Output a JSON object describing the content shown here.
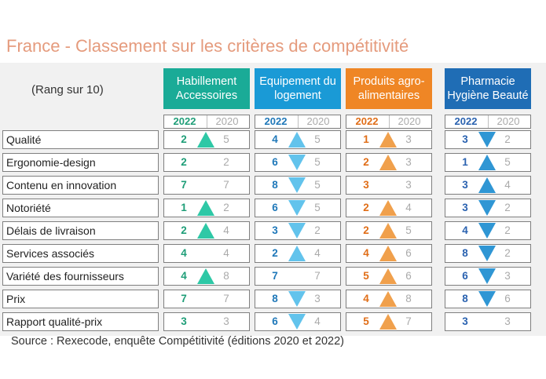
{
  "title": "France - Classement sur les critères de compétitivité",
  "subtitle": "(Rang sur 10)",
  "years": {
    "current": "2022",
    "previous": "2020"
  },
  "colors": {
    "title": "#e59b7d",
    "prev": "#aaaaaa"
  },
  "categories": [
    {
      "label": "Habillement Accessoires",
      "color": "#1aab97",
      "text": "#1f9e78",
      "arrow": "#2ec8a6"
    },
    {
      "label": "Equipement du logement",
      "color": "#1a9ad6",
      "text": "#1f78b9",
      "arrow": "#62c3ec"
    },
    {
      "label": "Produits agro-alimentaires",
      "color": "#ef8625",
      "text": "#e06e18",
      "arrow": "#f0a04c"
    },
    {
      "label": "Pharmacie Hygiène Beauté",
      "color": "#1f6db5",
      "text": "#2a62b0",
      "arrow": "#2f96d4"
    }
  ],
  "criteria": [
    {
      "label": "Qualité",
      "values": [
        [
          "2",
          "5",
          "up"
        ],
        [
          "4",
          "5",
          "up"
        ],
        [
          "1",
          "3",
          "up"
        ],
        [
          "3",
          "2",
          "down"
        ]
      ]
    },
    {
      "label": "Ergonomie-design",
      "values": [
        [
          "2",
          "2",
          ""
        ],
        [
          "6",
          "5",
          "down"
        ],
        [
          "2",
          "3",
          "up"
        ],
        [
          "1",
          "5",
          "up"
        ]
      ]
    },
    {
      "label": "Contenu en innovation",
      "values": [
        [
          "7",
          "7",
          ""
        ],
        [
          "8",
          "5",
          "down"
        ],
        [
          "3",
          "3",
          ""
        ],
        [
          "3",
          "4",
          "up"
        ]
      ]
    },
    {
      "label": "Notoriété",
      "values": [
        [
          "1",
          "2",
          "up"
        ],
        [
          "6",
          "5",
          "down"
        ],
        [
          "2",
          "4",
          "up"
        ],
        [
          "3",
          "2",
          "down"
        ]
      ]
    },
    {
      "label": "Délais de livraison",
      "values": [
        [
          "2",
          "4",
          "up"
        ],
        [
          "3",
          "2",
          "down"
        ],
        [
          "2",
          "5",
          "up"
        ],
        [
          "4",
          "2",
          "down"
        ]
      ]
    },
    {
      "label": "Services associés",
      "values": [
        [
          "4",
          "4",
          ""
        ],
        [
          "2",
          "4",
          "up"
        ],
        [
          "4",
          "6",
          "up"
        ],
        [
          "8",
          "2",
          "down"
        ]
      ]
    },
    {
      "label": "Variété des fournisseurs",
      "values": [
        [
          "4",
          "8",
          "up"
        ],
        [
          "7",
          "7",
          ""
        ],
        [
          "5",
          "6",
          "up"
        ],
        [
          "6",
          "3",
          "down"
        ]
      ]
    },
    {
      "label": "Prix",
      "values": [
        [
          "7",
          "7",
          ""
        ],
        [
          "8",
          "3",
          "down"
        ],
        [
          "4",
          "8",
          "up"
        ],
        [
          "8",
          "6",
          "down"
        ]
      ]
    },
    {
      "label": "Rapport qualité-prix",
      "values": [
        [
          "3",
          "3",
          ""
        ],
        [
          "6",
          "4",
          "down"
        ],
        [
          "5",
          "7",
          "up"
        ],
        [
          "3",
          "3",
          ""
        ]
      ]
    }
  ],
  "source": "Source : Rexecode, enquête Compétitivité (éditions 2020 et 2022)"
}
